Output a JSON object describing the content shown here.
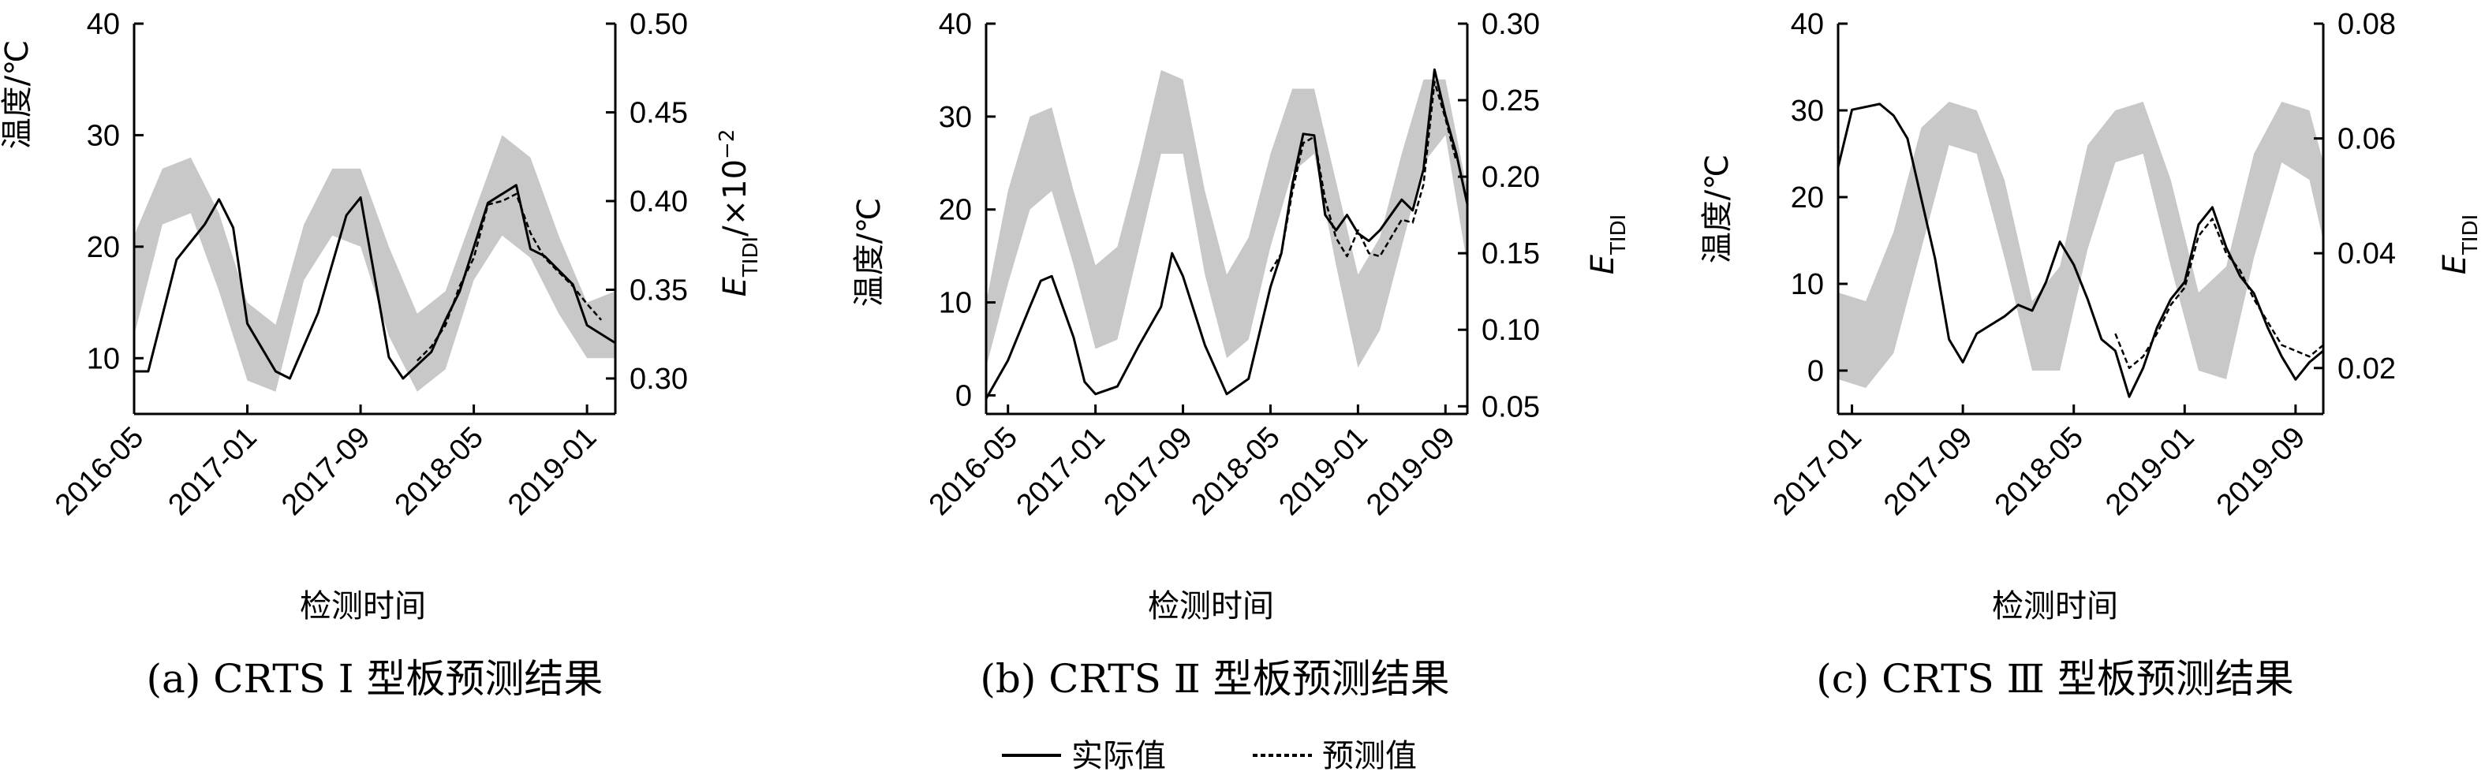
{
  "legend": {
    "actual": "实际值",
    "predicted": "预测值"
  },
  "chart_data": [
    {
      "type": "line",
      "caption": "(a) CRTS Ⅰ 型板预测结果",
      "xlabel": "检测时间",
      "ylabel": "温度/℃",
      "y2label": "E_TIDI/×10⁻²",
      "x_tick_labels": [
        "2016-05",
        "2017-01",
        "2017-09",
        "2018-05",
        "2019-01"
      ],
      "x_range": [
        "2016-05",
        "2019-03"
      ],
      "ylim": [
        5,
        40
      ],
      "yticks": [
        10,
        20,
        30,
        40
      ],
      "y2lim": [
        0.28,
        0.5
      ],
      "y2ticks": [
        0.3,
        0.35,
        0.4,
        0.45,
        0.5
      ],
      "temperature_band": {
        "x": [
          "2016-05",
          "2016-07",
          "2016-09",
          "2016-11",
          "2017-01",
          "2017-03",
          "2017-05",
          "2017-07",
          "2017-09",
          "2017-11",
          "2018-01",
          "2018-03",
          "2018-05",
          "2018-07",
          "2018-09",
          "2018-11",
          "2019-01",
          "2019-03"
        ],
        "low": [
          12,
          22,
          23,
          16,
          8,
          7,
          17,
          21,
          20,
          12,
          7,
          9,
          17,
          21,
          19,
          14,
          10,
          10
        ],
        "high": [
          21,
          27,
          28,
          23,
          15,
          13,
          22,
          27,
          27,
          20,
          14,
          16,
          23,
          30,
          28,
          21,
          15,
          16
        ]
      },
      "series": [
        {
          "name": "实际值",
          "x": [
            "2016-05",
            "2016-06",
            "2016-08",
            "2016-10",
            "2016-11",
            "2016-12",
            "2017-01",
            "2017-03",
            "2017-04",
            "2017-06",
            "2017-08",
            "2017-09",
            "2017-11",
            "2017-12",
            "2018-02",
            "2018-03",
            "2018-04",
            "2018-06",
            "2018-08",
            "2018-09",
            "2018-10",
            "2018-12",
            "2019-01",
            "2019-03"
          ],
          "y": [
            0.304,
            0.304,
            0.367,
            0.387,
            0.401,
            0.385,
            0.331,
            0.304,
            0.3,
            0.337,
            0.392,
            0.402,
            0.312,
            0.3,
            0.315,
            0.333,
            0.349,
            0.399,
            0.409,
            0.373,
            0.369,
            0.353,
            0.33,
            0.32
          ]
        },
        {
          "name": "预测值",
          "x": [
            "2018-01",
            "2018-02",
            "2018-03",
            "2018-04",
            "2018-05",
            "2018-06",
            "2018-07",
            "2018-08",
            "2018-09",
            "2018-10",
            "2018-11",
            "2018-12",
            "2019-01",
            "2019-02"
          ],
          "y": [
            0.31,
            0.318,
            0.33,
            0.352,
            0.368,
            0.398,
            0.4,
            0.404,
            0.382,
            0.368,
            0.36,
            0.352,
            0.342,
            0.333
          ]
        }
      ]
    },
    {
      "type": "line",
      "caption": "(b) CRTS Ⅱ 型板预测结果",
      "xlabel": "检测时间",
      "ylabel": "温度/℃",
      "y2label": "E_TIDI",
      "x_tick_labels": [
        "2016-05",
        "2017-01",
        "2017-09",
        "2018-05",
        "2019-01",
        "2019-09"
      ],
      "x_range": [
        "2016-03",
        "2019-11"
      ],
      "ylim": [
        -2,
        40
      ],
      "yticks": [
        0,
        10,
        20,
        30,
        40
      ],
      "y2lim": [
        0.045,
        0.3
      ],
      "y2ticks": [
        0.05,
        0.1,
        0.15,
        0.2,
        0.25,
        0.3
      ],
      "temperature_band": {
        "x": [
          "2016-03",
          "2016-05",
          "2016-07",
          "2016-09",
          "2016-11",
          "2017-01",
          "2017-03",
          "2017-05",
          "2017-07",
          "2017-09",
          "2017-11",
          "2018-01",
          "2018-03",
          "2018-05",
          "2018-07",
          "2018-09",
          "2018-11",
          "2019-01",
          "2019-03",
          "2019-05",
          "2019-07",
          "2019-09",
          "2019-11"
        ],
        "low": [
          3,
          12,
          20,
          22,
          14,
          5,
          6,
          16,
          26,
          26,
          13,
          4,
          6,
          16,
          24,
          26,
          14,
          3,
          7,
          16,
          25,
          28,
          14
        ],
        "high": [
          10,
          22,
          30,
          31,
          22,
          14,
          16,
          25,
          35,
          34,
          22,
          13,
          17,
          26,
          33,
          33,
          23,
          13,
          17,
          26,
          34,
          34,
          22
        ]
      },
      "series": [
        {
          "name": "实际值",
          "x": [
            "2016-03",
            "2016-05",
            "2016-07",
            "2016-08",
            "2016-09",
            "2016-11",
            "2016-12",
            "2017-01",
            "2017-03",
            "2017-05",
            "2017-07",
            "2017-08",
            "2017-09",
            "2017-11",
            "2018-01",
            "2018-02",
            "2018-03",
            "2018-05",
            "2018-06",
            "2018-07",
            "2018-08",
            "2018-09",
            "2018-10",
            "2018-11",
            "2018-12",
            "2019-01",
            "2019-02",
            "2019-03",
            "2019-05",
            "2019-06",
            "2019-07",
            "2019-08",
            "2019-09",
            "2019-10",
            "2019-11"
          ],
          "y": [
            0.055,
            0.08,
            0.115,
            0.132,
            0.135,
            0.095,
            0.066,
            0.058,
            0.063,
            0.09,
            0.115,
            0.15,
            0.135,
            0.09,
            0.058,
            0.063,
            0.068,
            0.128,
            0.15,
            0.195,
            0.228,
            0.227,
            0.175,
            0.165,
            0.175,
            0.163,
            0.158,
            0.165,
            0.185,
            0.178,
            0.205,
            0.27,
            0.24,
            0.215,
            0.182
          ]
        },
        {
          "name": "预测值",
          "x": [
            "2018-05",
            "2018-06",
            "2018-07",
            "2018-08",
            "2018-09",
            "2018-10",
            "2018-11",
            "2018-12",
            "2019-01",
            "2019-02",
            "2019-03",
            "2019-05",
            "2019-06",
            "2019-07",
            "2019-08",
            "2019-09",
            "2019-10"
          ],
          "y": [
            0.138,
            0.15,
            0.19,
            0.222,
            0.226,
            0.185,
            0.16,
            0.148,
            0.165,
            0.15,
            0.148,
            0.172,
            0.17,
            0.195,
            0.262,
            0.238,
            0.21
          ]
        }
      ]
    },
    {
      "type": "line",
      "caption": "(c) CRTS Ⅲ 型板预测结果",
      "xlabel": "检测时间",
      "ylabel": "温度/℃",
      "y2label": "E_TIDI",
      "x_tick_labels": [
        "2017-01",
        "2017-09",
        "2018-05",
        "2019-01",
        "2019-09"
      ],
      "x_range": [
        "2016-12",
        "2019-11"
      ],
      "ylim": [
        -5,
        40
      ],
      "yticks": [
        0,
        10,
        20,
        30,
        40
      ],
      "y2lim": [
        0.012,
        0.08
      ],
      "y2ticks": [
        0.02,
        0.04,
        0.06,
        0.08
      ],
      "temperature_band": {
        "x": [
          "2016-12",
          "2017-02",
          "2017-04",
          "2017-06",
          "2017-08",
          "2017-10",
          "2017-12",
          "2018-02",
          "2018-04",
          "2018-06",
          "2018-08",
          "2018-10",
          "2018-12",
          "2019-02",
          "2019-04",
          "2019-06",
          "2019-08",
          "2019-10",
          "2019-11"
        ],
        "low": [
          -1,
          -2,
          2,
          14,
          26,
          25,
          13,
          0,
          0,
          14,
          24,
          25,
          12,
          0,
          -1,
          13,
          24,
          22,
          15
        ],
        "high": [
          9,
          8,
          16,
          28,
          31,
          30,
          22,
          8,
          12,
          26,
          30,
          31,
          22,
          9,
          12,
          25,
          31,
          30,
          24
        ]
      },
      "series": [
        {
          "name": "实际值",
          "x": [
            "2016-12",
            "2017-01",
            "2017-03",
            "2017-04",
            "2017-05",
            "2017-07",
            "2017-08",
            "2017-09",
            "2017-10",
            "2017-12",
            "2018-01",
            "2018-02",
            "2018-03",
            "2018-04",
            "2018-05",
            "2018-06",
            "2018-07",
            "2018-08",
            "2018-09",
            "2018-10",
            "2018-11",
            "2018-12",
            "2019-01",
            "2019-02",
            "2019-03",
            "2019-04",
            "2019-05",
            "2019-06",
            "2019-07",
            "2019-08",
            "2019-09",
            "2019-10",
            "2019-11"
          ],
          "y": [
            0.055,
            0.065,
            0.066,
            0.064,
            0.06,
            0.039,
            0.025,
            0.021,
            0.026,
            0.029,
            0.031,
            0.03,
            0.035,
            0.042,
            0.038,
            0.032,
            0.025,
            0.023,
            0.015,
            0.02,
            0.027,
            0.032,
            0.035,
            0.045,
            0.048,
            0.041,
            0.036,
            0.033,
            0.027,
            0.022,
            0.018,
            0.021,
            0.023
          ]
        },
        {
          "name": "预测值",
          "x": [
            "2018-08",
            "2018-09",
            "2018-10",
            "2018-11",
            "2018-12",
            "2019-01",
            "2019-02",
            "2019-03",
            "2019-04",
            "2019-05",
            "2019-06",
            "2019-07",
            "2019-08",
            "2019-09",
            "2019-10",
            "2019-11"
          ],
          "y": [
            0.026,
            0.02,
            0.022,
            0.026,
            0.031,
            0.034,
            0.043,
            0.046,
            0.04,
            0.037,
            0.032,
            0.028,
            0.024,
            0.023,
            0.022,
            0.024
          ]
        }
      ]
    }
  ]
}
